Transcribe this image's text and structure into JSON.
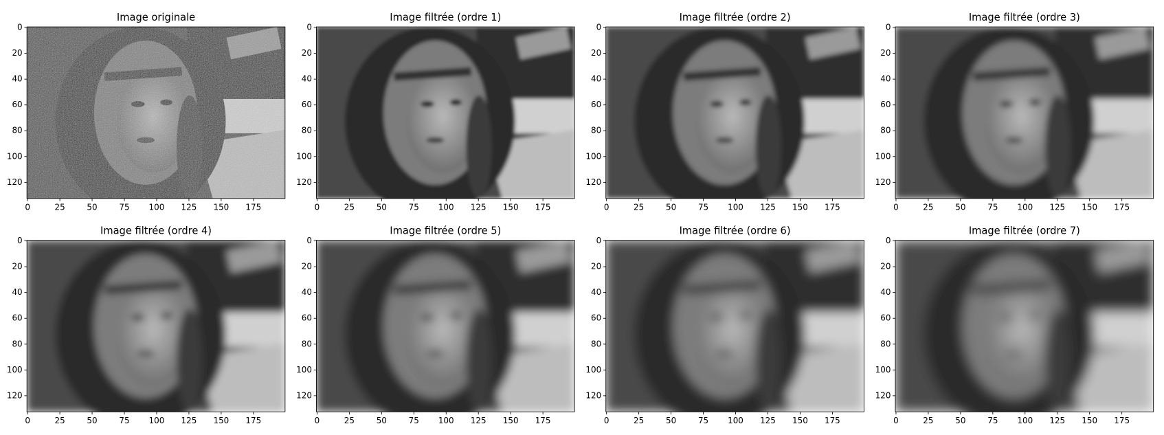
{
  "chart_data": [
    {
      "type": "image",
      "title": "Image originale",
      "xlim": [
        -0.5,
        199.5
      ],
      "ylim": [
        132.5,
        -0.5
      ],
      "xticks": [
        0,
        25,
        50,
        75,
        100,
        125,
        150,
        175
      ],
      "yticks": [
        0,
        20,
        40,
        60,
        80,
        100,
        120
      ]
    },
    {
      "type": "image",
      "title": "Image filtrée (ordre 1)",
      "xlim": [
        -0.5,
        199.5
      ],
      "ylim": [
        132.5,
        -0.5
      ],
      "xticks": [
        0,
        25,
        50,
        75,
        100,
        125,
        150,
        175
      ],
      "yticks": [
        0,
        20,
        40,
        60,
        80,
        100,
        120
      ]
    },
    {
      "type": "image",
      "title": "Image filtrée (ordre 2)",
      "xlim": [
        -0.5,
        199.5
      ],
      "ylim": [
        132.5,
        -0.5
      ],
      "xticks": [
        0,
        25,
        50,
        75,
        100,
        125,
        150,
        175
      ],
      "yticks": [
        0,
        20,
        40,
        60,
        80,
        100,
        120
      ]
    },
    {
      "type": "image",
      "title": "Image filtrée (ordre 3)",
      "xlim": [
        -0.5,
        199.5
      ],
      "ylim": [
        132.5,
        -0.5
      ],
      "xticks": [
        0,
        25,
        50,
        75,
        100,
        125,
        150,
        175
      ],
      "yticks": [
        0,
        20,
        40,
        60,
        80,
        100,
        120
      ]
    },
    {
      "type": "image",
      "title": "Image filtrée (ordre 4)",
      "xlim": [
        -0.5,
        199.5
      ],
      "ylim": [
        132.5,
        -0.5
      ],
      "xticks": [
        0,
        25,
        50,
        75,
        100,
        125,
        150,
        175
      ],
      "yticks": [
        0,
        20,
        40,
        60,
        80,
        100,
        120
      ]
    },
    {
      "type": "image",
      "title": "Image filtrée (ordre 5)",
      "xlim": [
        -0.5,
        199.5
      ],
      "ylim": [
        132.5,
        -0.5
      ],
      "xticks": [
        0,
        25,
        50,
        75,
        100,
        125,
        150,
        175
      ],
      "yticks": [
        0,
        20,
        40,
        60,
        80,
        100,
        120
      ]
    },
    {
      "type": "image",
      "title": "Image filtrée (ordre 6)",
      "xlim": [
        -0.5,
        199.5
      ],
      "ylim": [
        132.5,
        -0.5
      ],
      "xticks": [
        0,
        25,
        50,
        75,
        100,
        125,
        150,
        175
      ],
      "yticks": [
        0,
        20,
        40,
        60,
        80,
        100,
        120
      ]
    },
    {
      "type": "image",
      "title": "Image filtrée (ordre 7)",
      "xlim": [
        -0.5,
        199.5
      ],
      "ylim": [
        132.5,
        -0.5
      ],
      "xticks": [
        0,
        25,
        50,
        75,
        100,
        125,
        150,
        175
      ],
      "yticks": [
        0,
        20,
        40,
        60,
        80,
        100,
        120
      ]
    }
  ]
}
